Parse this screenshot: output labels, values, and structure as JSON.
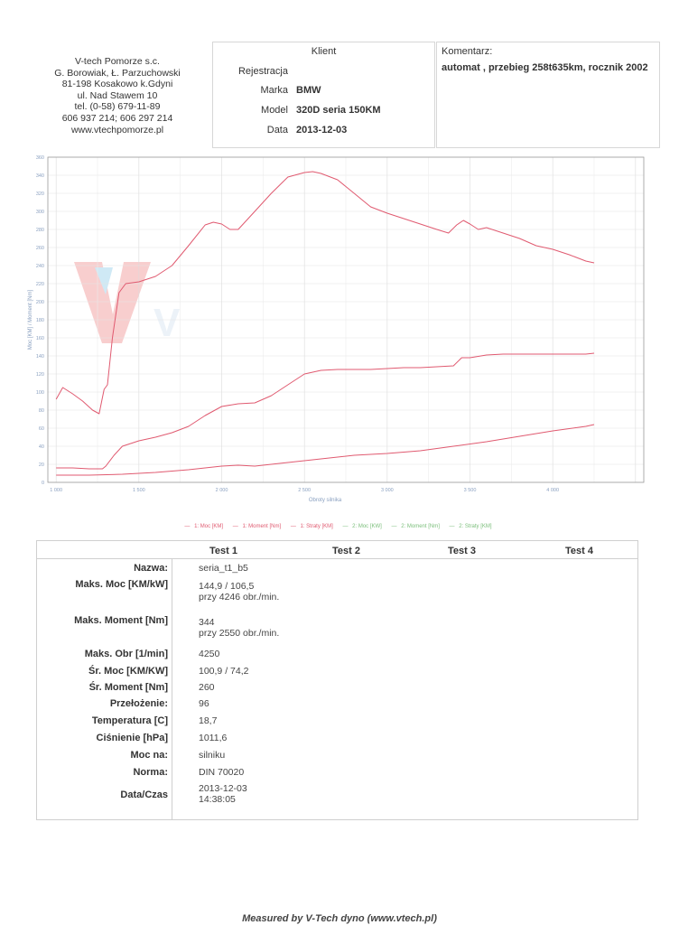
{
  "company": {
    "lines": [
      "V-tech Pomorze s.c.",
      "G. Borowiak, Ł. Parzuchowski",
      "81-198 Kosakowo k.Gdyni",
      "ul. Nad Stawem 10",
      "tel. (0-58) 679-11-89",
      "606 937 214; 606 297 214",
      "www.vtechpomorze.pl"
    ]
  },
  "client": {
    "title": "Klient",
    "fields": [
      {
        "label": "Rejestracja",
        "value": ""
      },
      {
        "label": "Marka",
        "value": "BMW"
      },
      {
        "label": "Model",
        "value": "320D seria 150KM"
      },
      {
        "label": "Data",
        "value": "2013-12-03"
      }
    ]
  },
  "comment": {
    "title": "Komentarz:",
    "text": "automat , przebieg 258t635km, rocznik 2002"
  },
  "logo_text": "V",
  "chart_data": {
    "type": "line",
    "xlabel": "Obroty silnika",
    "ylabel": "Moc [KM] / Moment [Nm]",
    "xlim": [
      950,
      4550
    ],
    "ylim": [
      0,
      360
    ],
    "xticks": [
      1000,
      1500,
      2000,
      2500,
      3000,
      3500,
      4000
    ],
    "xtick_labels": [
      "1 000",
      "1 500",
      "2 000",
      "2 500",
      "3 000",
      "3 500",
      "4 000"
    ],
    "yticks": [
      0,
      20,
      40,
      60,
      80,
      100,
      120,
      140,
      160,
      180,
      200,
      220,
      240,
      260,
      280,
      300,
      320,
      340,
      360
    ],
    "grid": true,
    "series": [
      {
        "name": "1: Moment [Nm]",
        "color": "#e05a70",
        "x": [
          1000,
          1040,
          1100,
          1160,
          1220,
          1260,
          1290,
          1310,
          1340,
          1380,
          1420,
          1500,
          1600,
          1700,
          1800,
          1900,
          1950,
          2000,
          2050,
          2100,
          2200,
          2300,
          2400,
          2500,
          2550,
          2600,
          2700,
          2800,
          2900,
          3000,
          3100,
          3200,
          3300,
          3370,
          3420,
          3460,
          3500,
          3550,
          3600,
          3700,
          3800,
          3900,
          4000,
          4100,
          4200,
          4250
        ],
        "y": [
          92,
          105,
          98,
          90,
          80,
          76,
          103,
          108,
          160,
          210,
          220,
          222,
          228,
          240,
          262,
          285,
          288,
          286,
          280,
          280,
          300,
          320,
          338,
          343,
          344,
          342,
          335,
          320,
          305,
          298,
          292,
          286,
          280,
          276,
          285,
          290,
          286,
          280,
          282,
          276,
          270,
          262,
          258,
          252,
          245,
          243
        ]
      },
      {
        "name": "1: Moc [KM]",
        "color": "#e05a70",
        "x": [
          1000,
          1100,
          1200,
          1280,
          1300,
          1350,
          1400,
          1500,
          1600,
          1700,
          1800,
          1900,
          2000,
          2100,
          2200,
          2300,
          2400,
          2500,
          2600,
          2700,
          2800,
          2900,
          3000,
          3100,
          3200,
          3300,
          3400,
          3450,
          3500,
          3600,
          3700,
          3800,
          3900,
          4000,
          4100,
          4200,
          4250
        ],
        "y": [
          16,
          16,
          15,
          15,
          18,
          30,
          40,
          46,
          50,
          55,
          62,
          74,
          84,
          87,
          88,
          96,
          108,
          120,
          124,
          125,
          125,
          125,
          126,
          127,
          127,
          128,
          129,
          138,
          138,
          141,
          142,
          142,
          142,
          142,
          142,
          142,
          143
        ]
      },
      {
        "name": "1: Straty [KM]",
        "color": "#e05a70",
        "x": [
          1000,
          1200,
          1400,
          1600,
          1800,
          2000,
          2100,
          2200,
          2400,
          2600,
          2800,
          3000,
          3200,
          3400,
          3600,
          3800,
          4000,
          4200,
          4250
        ],
        "y": [
          8,
          8,
          9,
          11,
          14,
          18,
          19,
          18,
          22,
          26,
          30,
          32,
          35,
          40,
          45,
          51,
          57,
          62,
          64
        ]
      }
    ],
    "legend": [
      "1: Moc [KM]",
      "1: Moment [Nm]",
      "1: Straty [KM]",
      "2: Moc [KW]",
      "2: Moment [Nm]",
      "2: Straty [KM]"
    ],
    "legend_colors": [
      "#e05a70",
      "#e05a70",
      "#e05a70",
      "#8bc98b",
      "#8bc98b",
      "#8bc98b"
    ],
    "legend_placement": "bottom"
  },
  "results": {
    "headers": [
      "Test 1",
      "Test 2",
      "Test 3",
      "Test 4"
    ],
    "rows": [
      {
        "label": "Nazwa:",
        "value": "seria_t1_b5"
      },
      {
        "label": "Maks. Moc [KM/kW]",
        "value": "144,9 / 106,5",
        "sub": "przy 4246 obr./min."
      },
      {
        "label": "Maks. Moment [Nm]",
        "value": "344",
        "sub": "przy 2550 obr./min."
      },
      {
        "label": "Maks. Obr [1/min]",
        "value": "4250"
      },
      {
        "label": "Śr. Moc [KM/KW]",
        "value": "100,9 / 74,2"
      },
      {
        "label": "Śr. Moment [Nm]",
        "value": "260"
      },
      {
        "label": "Przełożenie:",
        "value": "96"
      },
      {
        "label": "Temperatura [C]",
        "value": "18,7"
      },
      {
        "label": "Ciśnienie [hPa]",
        "value": "1011,6"
      },
      {
        "label": "Moc na:",
        "value": "silniku"
      },
      {
        "label": "Norma:",
        "value": "DIN 70020"
      },
      {
        "label": "Data/Czas",
        "value": "2013-12-03",
        "sub": "14:38:05"
      }
    ]
  },
  "footer": "Measured by V-Tech dyno (www.vtech.pl)"
}
